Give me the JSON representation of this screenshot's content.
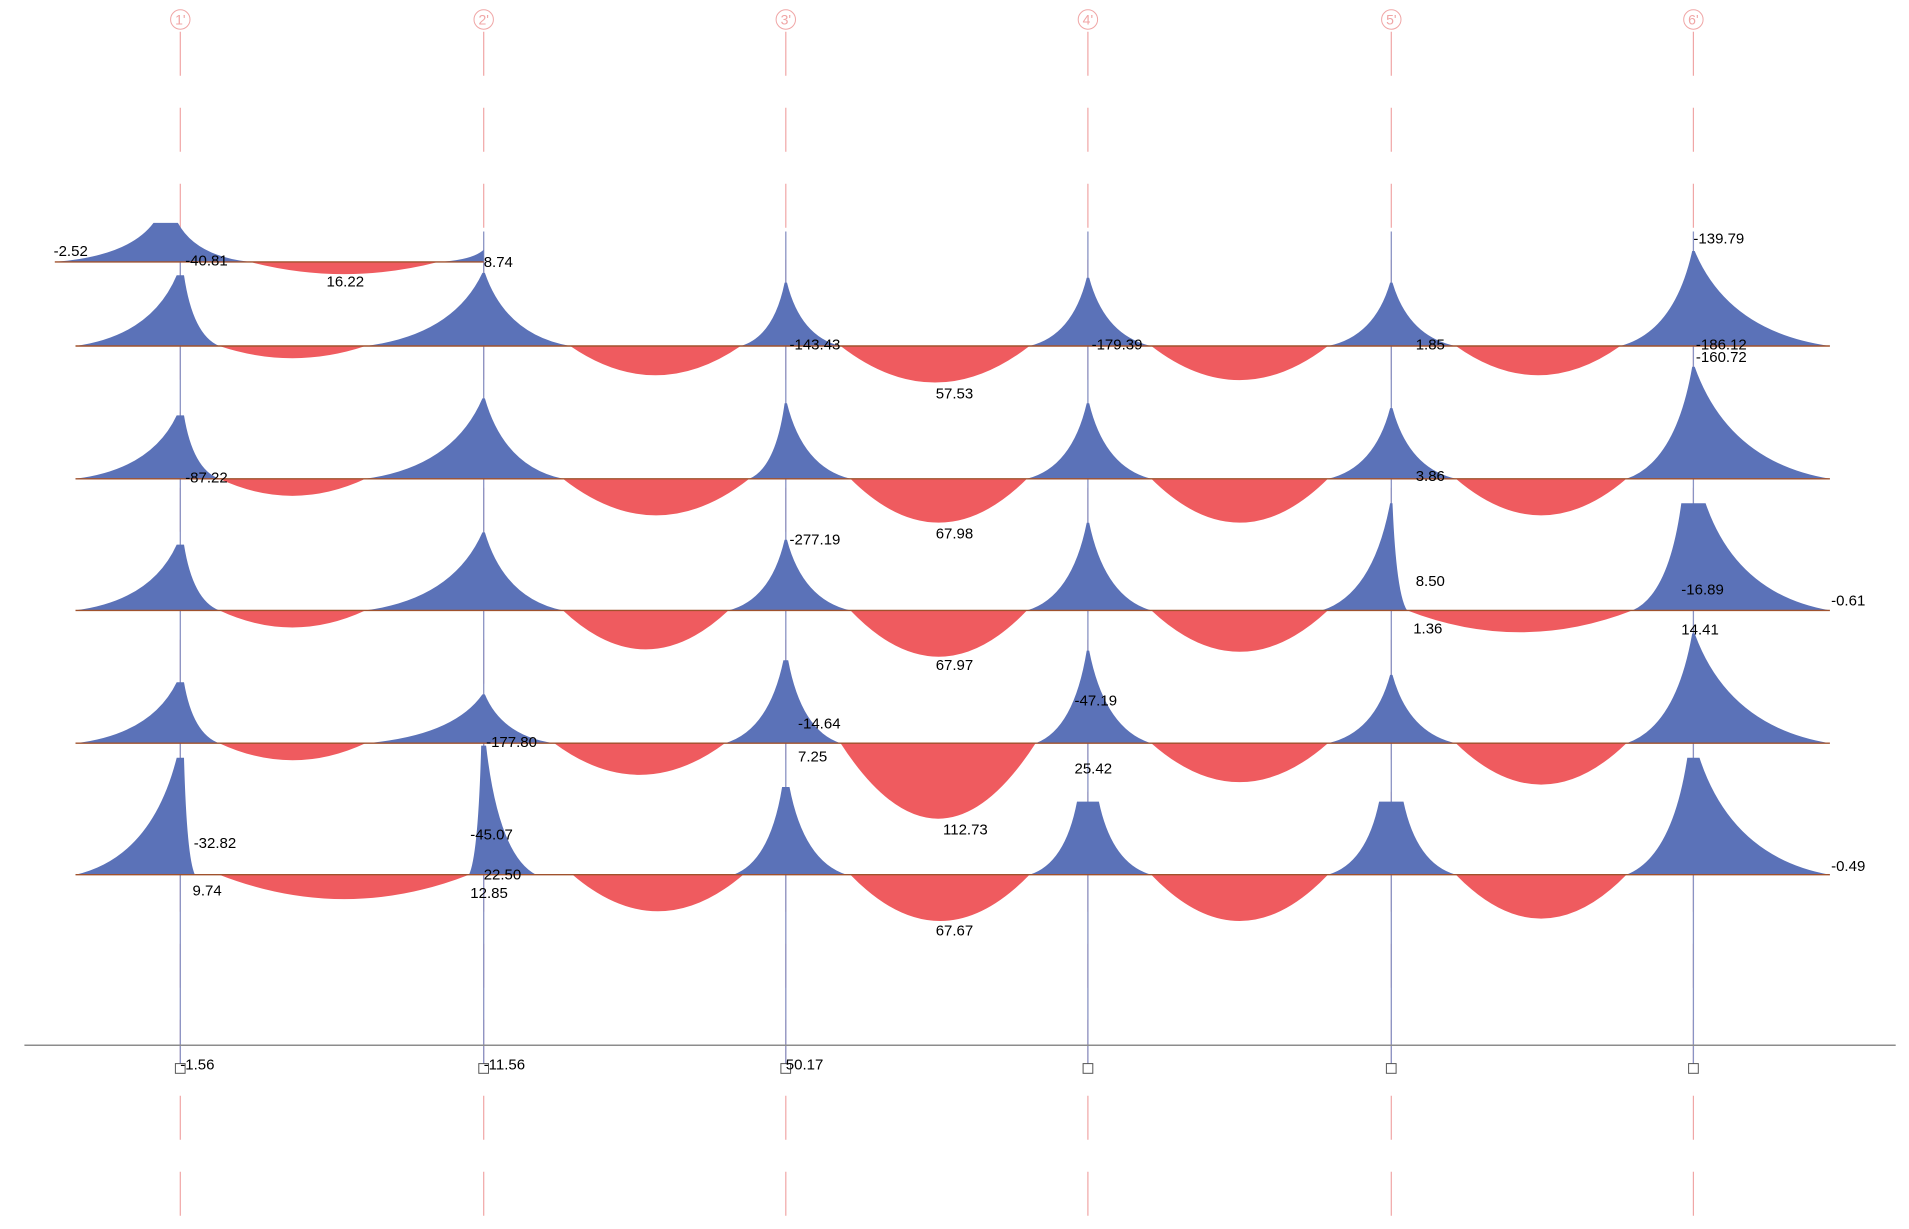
{
  "colors": {
    "hogging": "#5b72b8",
    "sagging": "#ef5b5f",
    "gridline": "#f0a6a6",
    "baseline": "#a0522d",
    "column": "#8a93c4",
    "ground": "#8c8c8c",
    "text": "#000000"
  },
  "grid_labels": [
    "1'",
    "2'",
    "3'",
    "4'",
    "5'",
    "6'"
  ],
  "value_labels": [
    "-2.52",
    "-40.81",
    "16.22",
    "8.74",
    "-139.79",
    "-143.43",
    "57.53",
    "-179.39",
    "1.85",
    "-186.12",
    "-160.72",
    "-87.22",
    "67.98",
    "3.86",
    "-277.19",
    "8.50",
    "-16.89",
    "-0.61",
    "67.97",
    "1.36",
    "14.41",
    "-14.64",
    "-47.19",
    "-177.80",
    "7.25",
    "25.42",
    "112.73",
    "-32.82",
    "-45.07",
    "22.50",
    "9.74",
    "12.85",
    "-0.49",
    "67.67",
    "-1.56",
    "-11.56",
    "50.17"
  ]
}
